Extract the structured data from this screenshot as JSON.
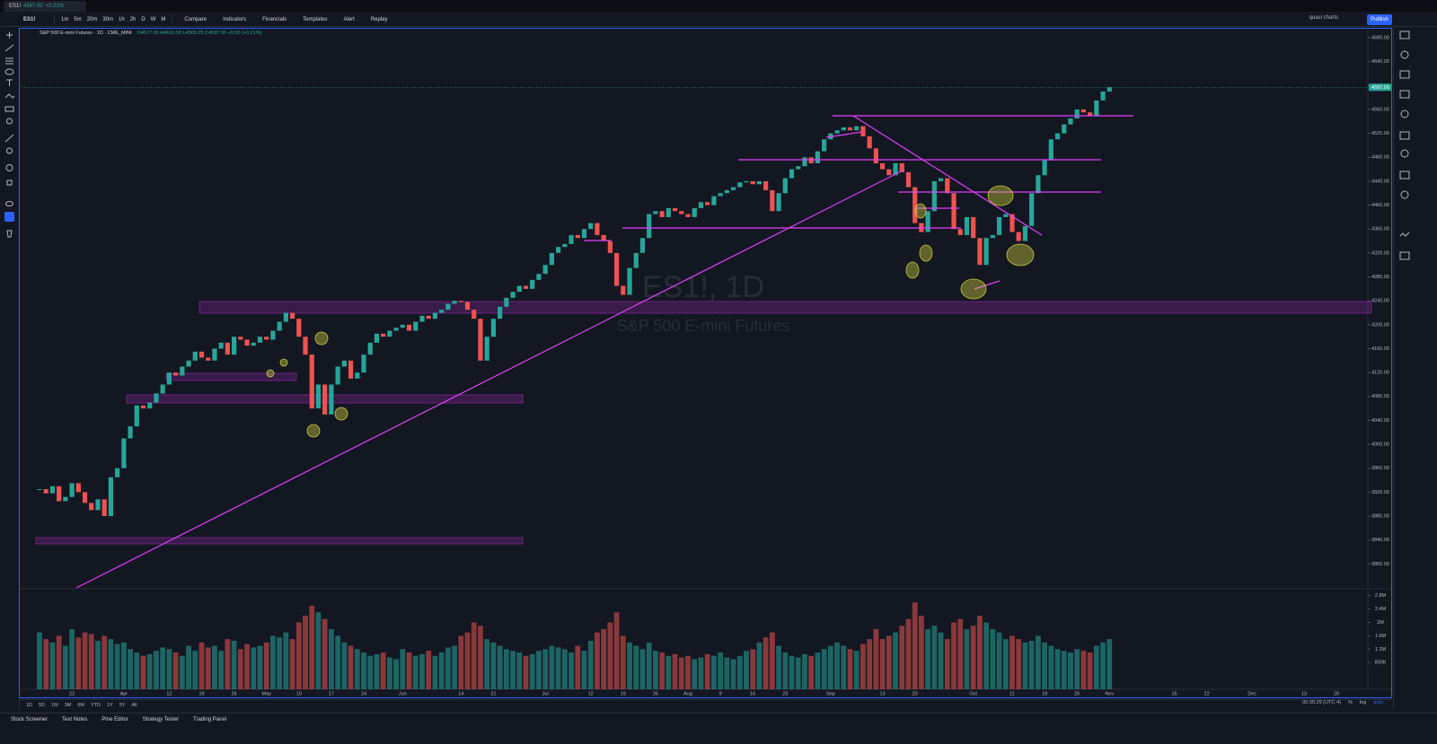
{
  "tab": {
    "symbol": "ES1!",
    "price": "4597.00",
    "change": "+0.21%"
  },
  "toolbar": {
    "symbol": "ES1!",
    "intervals": [
      "1m",
      "5m",
      "20m",
      "30m",
      "1h",
      "2h",
      "D",
      "W",
      "M"
    ],
    "buttons": [
      "Compare",
      "Indicators",
      "Financials",
      "Templates",
      "Alert",
      "Replay"
    ],
    "layout": "quasi charts",
    "publish": "Publish"
  },
  "chart_data": {
    "type": "candlestick",
    "title": "ES1!, 1D",
    "subtitle": "S&P 500 E-mini Futures",
    "legend": {
      "symbol": "S&P 500 E-mini Futures · 1D · CME_MINI",
      "ohlc": "O4577.00 H4610.50 L4569.25 C4597.00 +9.50 (+0.21%)"
    },
    "categories": [
      null,
      null,
      null,
      null,
      null,
      "22",
      null,
      null,
      null,
      null,
      null,
      null,
      null,
      "Apr",
      null,
      null,
      null,
      null,
      null,
      null,
      "12",
      null,
      null,
      null,
      null,
      "19",
      null,
      null,
      null,
      null,
      "26",
      null,
      null,
      null,
      null,
      "May",
      null,
      null,
      null,
      null,
      "10",
      null,
      null,
      null,
      null,
      "17",
      null,
      null,
      null,
      null,
      "24",
      null,
      null,
      null,
      null,
      null,
      "Jun",
      null,
      null,
      null,
      null,
      null,
      null,
      null,
      null,
      "14",
      null,
      null,
      null,
      null,
      "21",
      null,
      null,
      null,
      null,
      null,
      null,
      null,
      "Jul",
      null,
      null,
      null,
      null,
      null,
      null,
      "12",
      null,
      null,
      null,
      null,
      "19",
      null,
      null,
      null,
      null,
      "26",
      null,
      null,
      null,
      null,
      "Aug",
      null,
      null,
      null,
      null,
      "9",
      null,
      null,
      null,
      null,
      "16",
      null,
      null,
      null,
      null,
      "23",
      null,
      null,
      null,
      null,
      null,
      null,
      "Sep",
      null,
      null,
      null,
      null,
      null,
      null,
      null,
      "13",
      null,
      null,
      null,
      null,
      "20",
      null,
      null,
      null,
      null,
      null,
      null,
      null,
      null,
      "Oct",
      null,
      null,
      null,
      null,
      null,
      "11",
      null,
      null,
      null,
      null,
      "18",
      null,
      null,
      null,
      null,
      "25",
      null,
      null,
      null,
      null,
      "Nov",
      null,
      null,
      null,
      null,
      null,
      null,
      null,
      null,
      null,
      "15",
      null,
      null,
      null,
      null,
      "22",
      null,
      null,
      null,
      null,
      null,
      null,
      "Dec",
      null,
      null,
      null,
      null,
      null,
      null,
      null,
      "13",
      null,
      null,
      null,
      null,
      "20"
    ],
    "values": [
      3925,
      3918,
      3930,
      3905,
      3912,
      3935,
      3920,
      3902,
      3890,
      3908,
      3880,
      3945,
      3960,
      4010,
      4030,
      4065,
      4060,
      4070,
      4085,
      4100,
      4120,
      4115,
      4130,
      4140,
      4155,
      4145,
      4140,
      4160,
      4170,
      4150,
      4180,
      4175,
      4165,
      4170,
      4180,
      4175,
      4190,
      4205,
      4220,
      4210,
      4180,
      4150,
      4060,
      4100,
      4050,
      4100,
      4130,
      4140,
      4110,
      4120,
      4150,
      4170,
      4185,
      4180,
      4190,
      4195,
      4200,
      4190,
      4205,
      4215,
      4210,
      4220,
      4225,
      4235,
      4240,
      4238,
      4225,
      4210,
      4140,
      4180,
      4210,
      4230,
      4245,
      4255,
      4265,
      4260,
      4275,
      4285,
      4300,
      4320,
      4330,
      4335,
      4350,
      4345,
      4360,
      4370,
      4350,
      4340,
      4320,
      4265,
      4250,
      4295,
      4320,
      4345,
      4385,
      4390,
      4380,
      4395,
      4390,
      4385,
      4380,
      4395,
      4405,
      4400,
      4415,
      4420,
      4425,
      4430,
      4438,
      4440,
      4435,
      4440,
      4425,
      4390,
      4420,
      4445,
      4460,
      4465,
      4480,
      4470,
      4490,
      4510,
      4520,
      4525,
      4530,
      4525,
      4532,
      4515,
      4495,
      4470,
      4460,
      4450,
      4470,
      4455,
      4430,
      4370,
      4355,
      4390,
      4440,
      4445,
      4420,
      4360,
      4350,
      4380,
      4345,
      4300,
      4345,
      4350,
      4380,
      4385,
      4355,
      4340,
      4365,
      4420,
      4450,
      4475,
      4510,
      4520,
      4535,
      4545,
      4560,
      4555,
      4550,
      4575,
      4590,
      4597,
      null,
      null,
      null,
      null,
      null,
      null,
      null,
      null,
      null,
      null,
      null,
      null,
      null,
      null,
      null,
      null,
      null,
      null,
      null,
      null,
      null,
      null,
      null,
      null,
      null,
      null,
      null,
      null,
      null,
      null,
      null,
      null,
      null,
      null,
      null
    ],
    "up_color": "#26a69a",
    "down_color": "#ef5350",
    "ylim": [
      3760,
      4695
    ],
    "yticks": [
      {
        "value": 3800,
        "label": "3800.00"
      },
      {
        "value": 3840,
        "label": "3840.00"
      },
      {
        "value": 3880,
        "label": "3880.00"
      },
      {
        "value": 3920,
        "label": "3920.00"
      },
      {
        "value": 3960,
        "label": "3960.00"
      },
      {
        "value": 4000,
        "label": "4000.00"
      },
      {
        "value": 4040,
        "label": "4040.00"
      },
      {
        "value": 4080,
        "label": "4080.00"
      },
      {
        "value": 4120,
        "label": "4120.00"
      },
      {
        "value": 4160,
        "label": "4160.00"
      },
      {
        "value": 4200,
        "label": "4200.00"
      },
      {
        "value": 4240,
        "label": "4240.00"
      },
      {
        "value": 4280,
        "label": "4280.00"
      },
      {
        "value": 4320,
        "label": "4320.00"
      },
      {
        "value": 4360,
        "label": "4360.00"
      },
      {
        "value": 4400,
        "label": "4400.00"
      },
      {
        "value": 4440,
        "label": "4440.00"
      },
      {
        "value": 4480,
        "label": "4480.00"
      },
      {
        "value": 4520,
        "label": "4520.00"
      },
      {
        "value": 4560,
        "label": "4560.00"
      },
      {
        "value": 4600,
        "label": "4600.00"
      },
      {
        "value": 4640,
        "label": "4640.00"
      },
      {
        "value": 4680,
        "label": "4680.00"
      }
    ],
    "last_price_label": "4597.00",
    "volume": {
      "values": [
        1700,
        1500,
        1400,
        1600,
        1300,
        1800,
        1550,
        1700,
        1650,
        1450,
        1600,
        1500,
        1350,
        1400,
        1200,
        1100,
        1000,
        1050,
        1150,
        1250,
        1200,
        1100,
        1000,
        1300,
        1150,
        1400,
        1250,
        1300,
        1150,
        1500,
        1450,
        1200,
        1350,
        1250,
        1300,
        1400,
        1600,
        1550,
        1700,
        1500,
        2000,
        2200,
        2500,
        2300,
        2100,
        1800,
        1600,
        1400,
        1300,
        1200,
        1100,
        1000,
        1050,
        1100,
        950,
        900,
        1200,
        1100,
        1000,
        1050,
        1150,
        1000,
        1100,
        1250,
        1300,
        1600,
        1700,
        2000,
        1900,
        1500,
        1400,
        1300,
        1200,
        1150,
        1100,
        1000,
        1050,
        1150,
        1200,
        1300,
        1250,
        1200,
        1100,
        1300,
        1150,
        1450,
        1700,
        1800,
        2000,
        2300,
        1600,
        1400,
        1300,
        1200,
        1400,
        1150,
        1100,
        1000,
        1050,
        950,
        1000,
        900,
        950,
        1050,
        1000,
        1100,
        950,
        900,
        1000,
        1150,
        1200,
        1400,
        1550,
        1700,
        1300,
        1100,
        1000,
        950,
        1050,
        1000,
        1100,
        1200,
        1300,
        1400,
        1300,
        1200,
        1150,
        1350,
        1500,
        1800,
        1500,
        1600,
        1700,
        1900,
        2100,
        2600,
        2200,
        1800,
        1900,
        1700,
        1500,
        2000,
        2100,
        1800,
        1900,
        2200,
        2000,
        1800,
        1700,
        1500,
        1600,
        1500,
        1400,
        1450,
        1600,
        1400,
        1300,
        1200,
        1150,
        1100,
        1200,
        1150,
        1100,
        1300,
        1400,
        1500,
        null,
        null,
        null,
        null,
        null,
        null,
        null,
        null,
        null,
        null,
        null,
        null,
        null,
        null,
        null,
        null,
        null,
        null,
        null,
        null,
        null,
        null,
        null,
        null,
        null,
        null,
        null,
        null,
        null,
        null,
        null,
        null,
        null,
        null,
        null
      ],
      "ylim": [
        0,
        2900
      ],
      "yticks": [
        {
          "value": 800,
          "label": "800K"
        },
        {
          "value": 1200,
          "label": "1.2M"
        },
        {
          "value": 1600,
          "label": "1.6M"
        },
        {
          "value": 2000,
          "label": "2M"
        },
        {
          "value": 2400,
          "label": "2.4M"
        },
        {
          "value": 2800,
          "label": "2.8M"
        }
      ]
    }
  },
  "range_bar": {
    "ranges": [
      "1D",
      "5D",
      "1M",
      "3M",
      "6M",
      "YTD",
      "1Y",
      "5Y",
      "All"
    ],
    "clock": "00:35:29 (UTC-4)",
    "percent": "%",
    "log": "log",
    "auto": "auto"
  },
  "panel_tabs": [
    "Stock Screener",
    "Text Notes",
    "Pine Editor",
    "Strategy Tester",
    "Trading Panel"
  ]
}
